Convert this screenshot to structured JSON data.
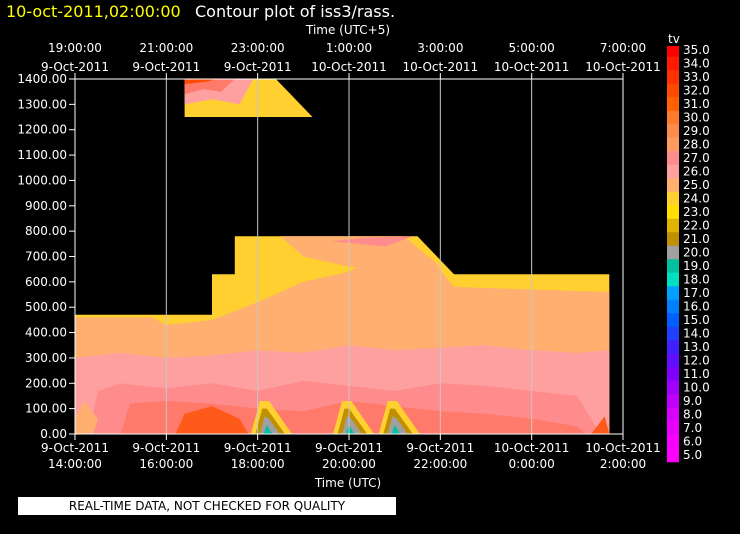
{
  "header": {
    "timestamp": "10-oct-2011,02:00:00",
    "title": "Contour plot of iss3/rass."
  },
  "footer": {
    "disclaimer": "REAL-TIME DATA, NOT CHECKED FOR QUALITY"
  },
  "colors": {
    "title_timestamp": "#ffff00",
    "background": "#000000",
    "grid": "#c8c8c8"
  },
  "chart_data": {
    "type": "heatmap",
    "top_axis_label": "Time (UTC+5)",
    "bottom_axis_label": "Time (UTC)",
    "ylim": [
      0,
      1400
    ],
    "xlim_hours_utc": [
      "9-Oct-2011 14:00:00",
      "10-Oct-2011 2:00:00"
    ],
    "y_ticks": [
      "0.00",
      "100.00",
      "200.00",
      "300.00",
      "400.00",
      "500.00",
      "600.00",
      "700.00",
      "800.00",
      "900.00",
      "1000.00",
      "1100.00",
      "1200.00",
      "1300.00",
      "1400.00"
    ],
    "x_ticks_bottom": [
      {
        "date": "9-Oct-2011",
        "time": "14:00:00"
      },
      {
        "date": "9-Oct-2011",
        "time": "16:00:00"
      },
      {
        "date": "9-Oct-2011",
        "time": "18:00:00"
      },
      {
        "date": "9-Oct-2011",
        "time": "20:00:00"
      },
      {
        "date": "9-Oct-2011",
        "time": "22:00:00"
      },
      {
        "date": "10-Oct-2011",
        "time": "0:00:00"
      },
      {
        "date": "10-Oct-2011",
        "time": "2:00:00"
      }
    ],
    "x_ticks_top": [
      {
        "time": "19:00:00",
        "date": "9-Oct-2011"
      },
      {
        "time": "21:00:00",
        "date": "9-Oct-2011"
      },
      {
        "time": "23:00:00",
        "date": "9-Oct-2011"
      },
      {
        "time": "1:00:00",
        "date": "10-Oct-2011"
      },
      {
        "time": "3:00:00",
        "date": "10-Oct-2011"
      },
      {
        "time": "5:00:00",
        "date": "10-Oct-2011"
      },
      {
        "time": "7:00:00",
        "date": "10-Oct-2011"
      }
    ],
    "colorbar": {
      "label": "tv",
      "values": [
        "35.0",
        "34.0",
        "33.0",
        "32.0",
        "31.0",
        "30.0",
        "29.0",
        "28.0",
        "27.0",
        "26.0",
        "25.0",
        "24.0",
        "23.0",
        "22.0",
        "21.0",
        "20.0",
        "19.0",
        "18.0",
        "17.0",
        "16.0",
        "15.0",
        "14.0",
        "13.0",
        "12.0",
        "11.0",
        "10.0",
        "9.0",
        "8.0",
        "7.0",
        "6.0",
        "5.0"
      ],
      "colors": [
        "#ff0000",
        "#ff1a00",
        "#ff3300",
        "#ff4a00",
        "#ff6000",
        "#ff7a2a",
        "#ff8c4a",
        "#ff9a60",
        "#ff8c8c",
        "#ffa0a0",
        "#ffb070",
        "#ffd030",
        "#ffe000",
        "#e0b400",
        "#c09000",
        "#a0a0a0",
        "#00c0a0",
        "#00e0c0",
        "#00a0ff",
        "#0080ff",
        "#0060ff",
        "#2040ff",
        "#4020ff",
        "#6010ff",
        "#8000ff",
        "#a000ff",
        "#c000ff",
        "#d800ff",
        "#e800ff",
        "#f800ff",
        "#ff00ff"
      ]
    },
    "data_region_top_m_by_time_utc": [
      {
        "time": "14:00",
        "top": 470
      },
      {
        "time": "16:00",
        "top": 470
      },
      {
        "time": "17:00",
        "top": 630
      },
      {
        "time": "18:00",
        "top": 780
      },
      {
        "time": "20:00",
        "top": 780
      },
      {
        "time": "21:00",
        "top": 640
      },
      {
        "time": "2:00",
        "top": 630
      }
    ],
    "upper_band_m": [
      1250,
      1400
    ],
    "dominant_tv_low_levels": "26-29",
    "dominant_tv_mid_levels": "24-26",
    "dominant_tv_top_levels": "22-24"
  }
}
